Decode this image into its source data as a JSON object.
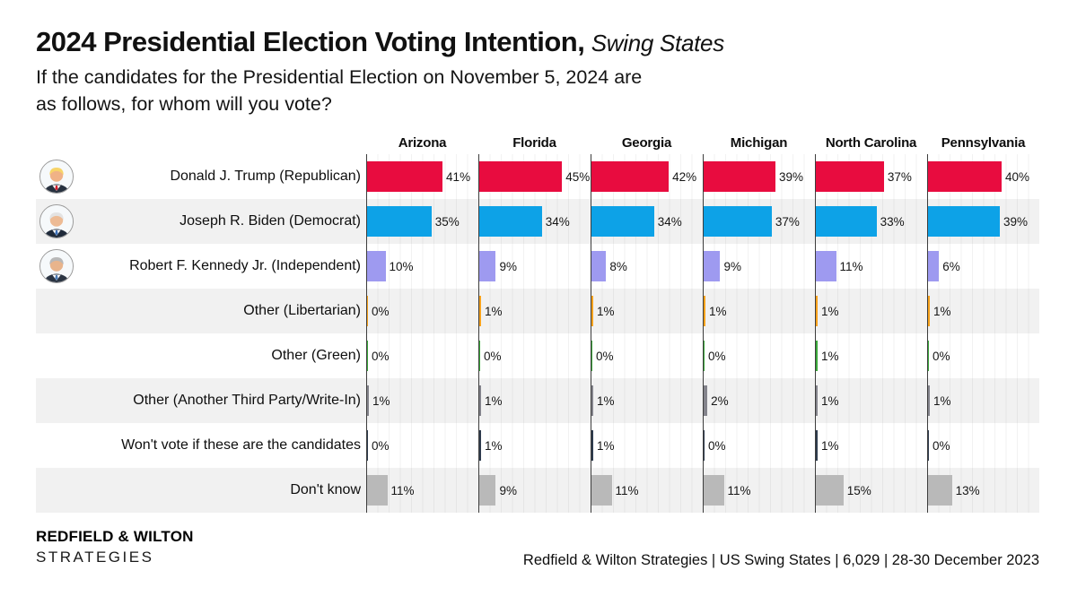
{
  "header": {
    "title_bold": "2024 Presidential Election Voting Intention",
    "title_separator": ",",
    "title_italic": " Swing States",
    "subtitle_line1": "If the candidates for the Presidential Election on November 5, 2024 are",
    "subtitle_line2": "as follows, for whom will you vote?"
  },
  "chart_data": {
    "type": "bar",
    "orientation": "horizontal",
    "categories": [
      "Arizona",
      "Florida",
      "Georgia",
      "Michigan",
      "North Carolina",
      "Pennsylvania"
    ],
    "value_suffix": "%",
    "xlim": [
      0,
      55
    ],
    "gridline_step_pct": 6,
    "legend": "none",
    "row_band_color": "#f1f1f1",
    "axis_color": "#3d3d3d",
    "series": [
      {
        "name": "Donald J. Trump (Republican)",
        "avatar": "trump-avatar",
        "color": "#e80c3f",
        "values": [
          41,
          45,
          42,
          39,
          37,
          40
        ]
      },
      {
        "name": "Joseph R. Biden (Democrat)",
        "avatar": "biden-avatar",
        "color": "#0da2e7",
        "values": [
          35,
          34,
          34,
          37,
          33,
          39
        ]
      },
      {
        "name": "Robert F. Kennedy Jr. (Independent)",
        "avatar": "kennedy-avatar",
        "color": "#9e9af0",
        "values": [
          10,
          9,
          8,
          9,
          11,
          6
        ]
      },
      {
        "name": "Other (Libertarian)",
        "avatar": null,
        "color": "#f7a21c",
        "values": [
          0,
          1,
          1,
          1,
          1,
          1
        ]
      },
      {
        "name": "Other (Green)",
        "avatar": null,
        "color": "#3aa83a",
        "values": [
          0,
          0,
          0,
          0,
          1,
          0
        ]
      },
      {
        "name": "Other (Another Third Party/Write-In)",
        "avatar": null,
        "color": "#84848c",
        "values": [
          1,
          1,
          1,
          2,
          1,
          1
        ]
      },
      {
        "name": "Won't vote if these are the candidates",
        "avatar": null,
        "color": "#2e3b4d",
        "values": [
          0,
          1,
          1,
          0,
          1,
          0
        ]
      },
      {
        "name": "Don't know",
        "avatar": null,
        "color": "#b9b9b9",
        "values": [
          11,
          9,
          11,
          11,
          15,
          13
        ]
      }
    ]
  },
  "footer": {
    "brand_line1": "REDFIELD & WILTON",
    "brand_line2": "STRATEGIES",
    "source": "Redfield & Wilton Strategies | US Swing States | 6,029 | 28-30 December 2023"
  }
}
